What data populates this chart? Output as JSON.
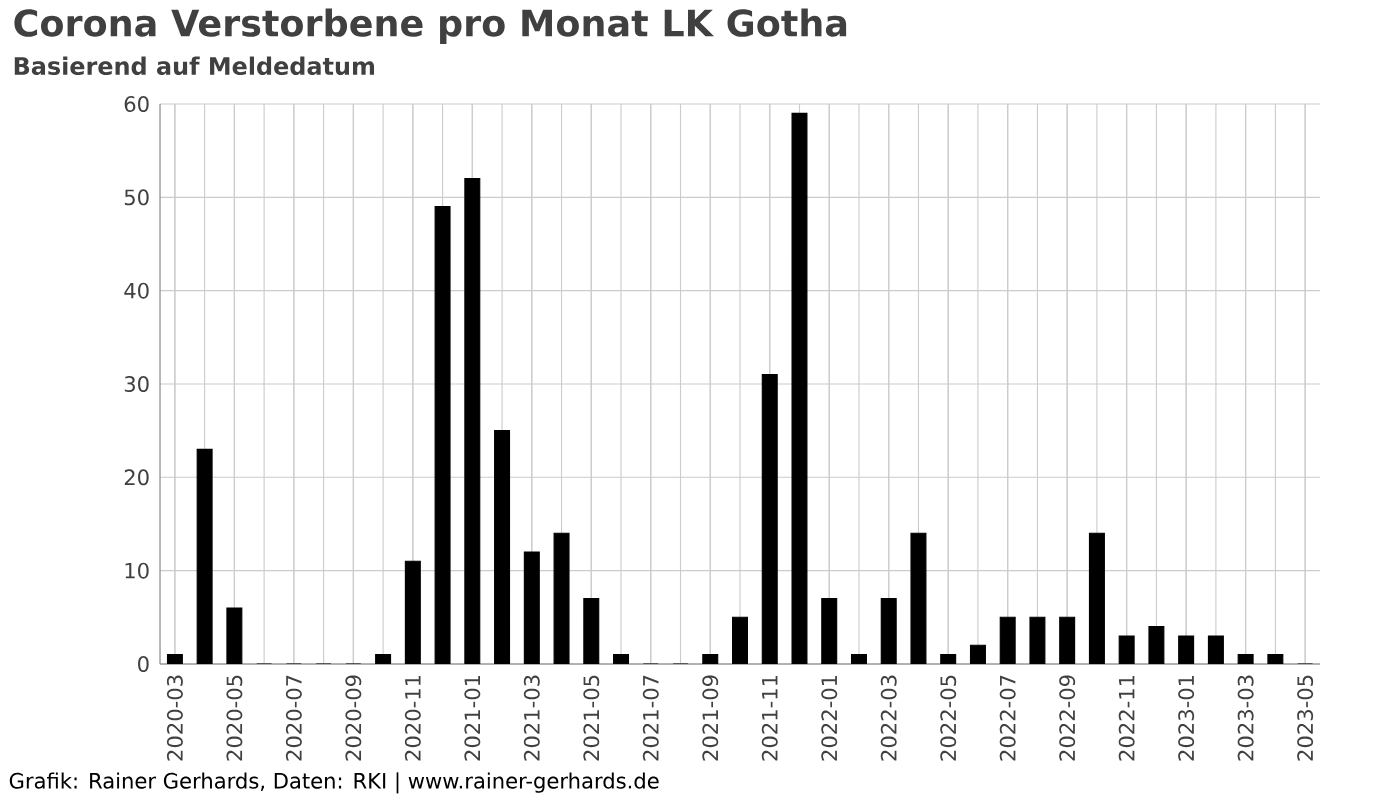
{
  "chart_data": {
    "type": "bar",
    "title": "Corona Verstorbene pro Monat LK Gotha",
    "subtitle": "Basierend auf Meldedatum",
    "categories": [
      "2020-03",
      null,
      "2020-05",
      null,
      "2020-07",
      null,
      "2020-09",
      null,
      "2020-11",
      null,
      "2021-01",
      null,
      "2021-03",
      null,
      "2021-05",
      null,
      "2021-07",
      null,
      "2021-09",
      null,
      "2021-11",
      null,
      "2022-01",
      null,
      "2022-03",
      null,
      "2022-05",
      null,
      "2022-07",
      null,
      "2022-09",
      null,
      "2022-11",
      null,
      "2023-01",
      null,
      "2023-03",
      null,
      "2023-05"
    ],
    "values": [
      1,
      23,
      6,
      0,
      0,
      0,
      0,
      1,
      11,
      49,
      52,
      25,
      12,
      14,
      7,
      1,
      0,
      0,
      1,
      5,
      31,
      59,
      7,
      1,
      7,
      14,
      1,
      2,
      5,
      5,
      5,
      14,
      3,
      4,
      3,
      3,
      1,
      1,
      0
    ],
    "color": "#000000",
    "ylim": [
      0,
      60
    ],
    "yticks": [
      0,
      10,
      20,
      30,
      40,
      50,
      60
    ],
    "grid": true,
    "annotations": [
      "Grafik: Rainer Gerhards, Daten: RKI | www.rainer-gerhards.de"
    ]
  }
}
